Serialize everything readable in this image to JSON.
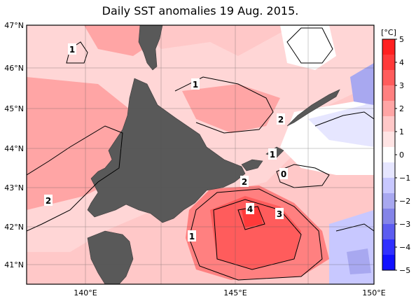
{
  "title": "Daily SST anomalies 19 Aug. 2015.",
  "colorbar": {
    "unit": "[°C]",
    "ticks": [
      "5",
      "4",
      "3",
      "2",
      "1",
      "0",
      "−1",
      "−2",
      "−3",
      "−4",
      "−5"
    ],
    "colors": [
      "#ff2020",
      "#ff3a3a",
      "#ff5c5c",
      "#ff8080",
      "#ffa5a5",
      "#ffc8c8",
      "#ffe4e4",
      "#ffffff",
      "#e6e6ff",
      "#c8c8ff",
      "#a8a8f0",
      "#8484e8",
      "#5c5cf0",
      "#3030ff",
      "#1010ff"
    ]
  },
  "map": {
    "lat_labels": [
      "47°N",
      "46°N",
      "45°N",
      "44°N",
      "43°N",
      "42°N",
      "41°N"
    ],
    "lon_labels": [
      "140°E",
      "145°E",
      "150°E"
    ],
    "land_color": "#595959",
    "contour_labels": [
      "1",
      "1",
      "2",
      "2",
      "1",
      "0",
      "2",
      "4",
      "3",
      "1"
    ]
  }
}
